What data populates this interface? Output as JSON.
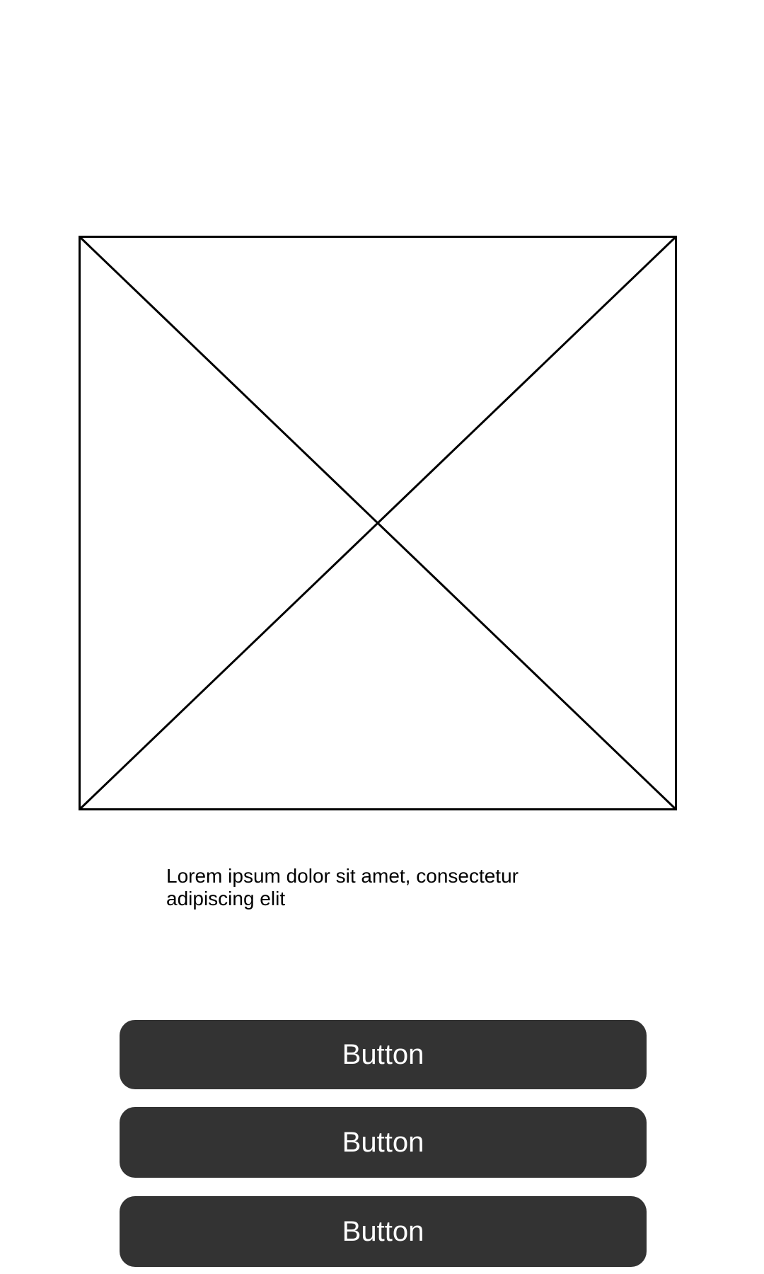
{
  "image_placeholder": {
    "icon": "image-placeholder-icon",
    "stroke_color": "#000000"
  },
  "caption": {
    "text": "Lorem ipsum dolor sit amet, consectetur adipiscing elit"
  },
  "buttons": [
    {
      "label": "Button"
    },
    {
      "label": "Button"
    },
    {
      "label": "Button"
    }
  ],
  "colors": {
    "background": "#ffffff",
    "button_bg": "#333333",
    "button_text": "#ffffff",
    "text": "#000000"
  }
}
